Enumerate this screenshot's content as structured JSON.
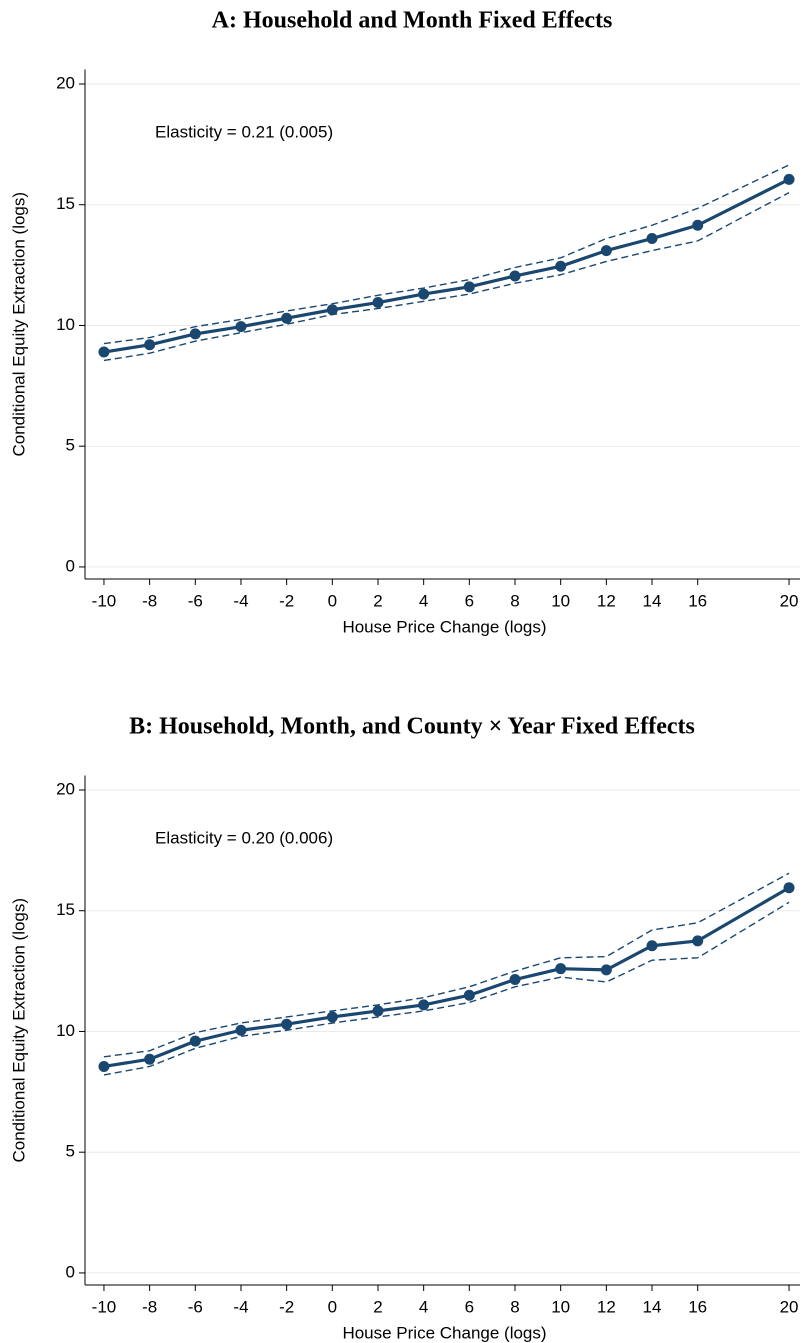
{
  "chart_data": [
    {
      "type": "line",
      "title": "A: Household and Month Fixed Effects",
      "x_label": "House Price Change (logs)",
      "y_label": "Conditional Equity Extraction (logs)",
      "annotation": "Elasticity = 0.21 (0.005)",
      "x": [
        -10,
        -8,
        -6,
        -4,
        -2,
        0,
        2,
        4,
        6,
        8,
        10,
        12,
        14,
        16,
        20
      ],
      "series": [
        {
          "color": "#1a476f",
          "style": "solid",
          "markers": true,
          "values": [
            8.9,
            9.2,
            9.65,
            9.95,
            10.3,
            10.65,
            10.95,
            11.3,
            11.6,
            12.05,
            12.45,
            13.1,
            13.6,
            14.15,
            16.05
          ]
        },
        {
          "color": "#1a476f",
          "style": "dashed",
          "markers": false,
          "values": [
            9.25,
            9.5,
            9.95,
            10.25,
            10.6,
            10.9,
            11.25,
            11.55,
            11.9,
            12.4,
            12.8,
            13.6,
            14.15,
            14.85,
            16.65
          ]
        },
        {
          "color": "#1a476f",
          "style": "dashed",
          "markers": false,
          "values": [
            8.55,
            8.85,
            9.35,
            9.7,
            10.05,
            10.45,
            10.7,
            11.0,
            11.3,
            11.75,
            12.1,
            12.65,
            13.1,
            13.5,
            15.5
          ]
        }
      ],
      "xlim": [
        -10.83,
        20.48
      ],
      "ylim": [
        -0.5,
        20.6
      ],
      "xticks": [
        -10,
        -8,
        -6,
        -4,
        -2,
        0,
        2,
        4,
        6,
        8,
        10,
        12,
        14,
        16,
        20
      ],
      "yticks": [
        0,
        5,
        10,
        15,
        20
      ],
      "grid": true
    },
    {
      "type": "line",
      "title": "B: Household, Month, and County × Year Fixed Effects",
      "x_label": "House Price Change (logs)",
      "y_label": "Conditional Equity Extraction (logs)",
      "annotation": "Elasticity = 0.20 (0.006)",
      "x": [
        -10,
        -8,
        -6,
        -4,
        -2,
        0,
        2,
        4,
        6,
        8,
        10,
        12,
        14,
        16,
        20
      ],
      "series": [
        {
          "color": "#1a476f",
          "style": "solid",
          "markers": true,
          "values": [
            8.55,
            8.85,
            9.6,
            10.05,
            10.3,
            10.6,
            10.85,
            11.1,
            11.5,
            12.15,
            12.6,
            12.55,
            13.55,
            13.75,
            15.95
          ]
        },
        {
          "color": "#1a476f",
          "style": "dashed",
          "markers": false,
          "values": [
            8.95,
            9.2,
            9.95,
            10.35,
            10.6,
            10.85,
            11.1,
            11.4,
            11.85,
            12.5,
            13.05,
            13.1,
            14.2,
            14.5,
            16.55
          ]
        },
        {
          "color": "#1a476f",
          "style": "dashed",
          "markers": false,
          "values": [
            8.2,
            8.55,
            9.3,
            9.8,
            10.05,
            10.35,
            10.6,
            10.85,
            11.2,
            11.85,
            12.25,
            12.05,
            12.95,
            13.05,
            15.35
          ]
        }
      ],
      "xlim": [
        -10.83,
        20.48
      ],
      "ylim": [
        -0.5,
        20.6
      ],
      "xticks": [
        -10,
        -8,
        -6,
        -4,
        -2,
        0,
        2,
        4,
        6,
        8,
        10,
        12,
        14,
        16,
        20
      ],
      "yticks": [
        0,
        5,
        10,
        15,
        20
      ],
      "grid": true
    }
  ]
}
